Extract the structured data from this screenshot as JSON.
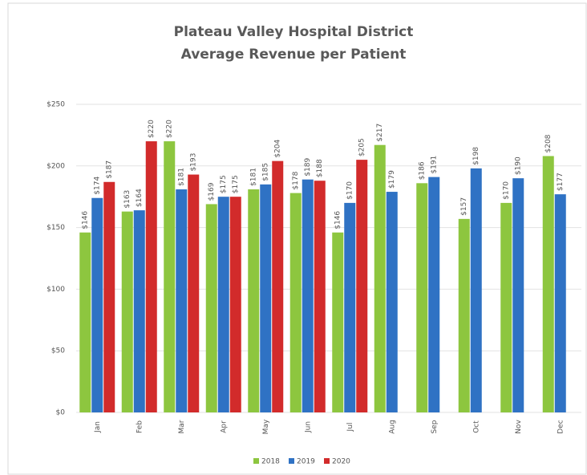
{
  "chart_data": {
    "type": "bar",
    "title": "Plateau Valley Hospital District",
    "subtitle": "Average Revenue per Patient",
    "categories": [
      "Jan",
      "Feb",
      "Mar",
      "Apr",
      "May",
      "Jun",
      "Jul",
      "Aug",
      "Sep",
      "Oct",
      "Nov",
      "Dec"
    ],
    "series": [
      {
        "name": "2018",
        "color": "#8dc63f",
        "values": [
          146,
          163,
          220,
          169,
          181,
          178,
          146,
          217,
          186,
          157,
          170,
          208
        ],
        "value_labels": [
          "$146",
          "$163",
          "$220",
          "$169",
          "$181",
          "$178",
          "$146",
          "$217",
          "$186",
          "$157",
          "$170",
          "$208"
        ]
      },
      {
        "name": "2019",
        "color": "#2f72c4",
        "values": [
          174,
          164,
          181,
          175,
          185,
          189,
          170,
          179,
          191,
          198,
          190,
          177
        ],
        "value_labels": [
          "$174",
          "$164",
          "$181",
          "$175",
          "$185",
          "$189",
          "$170",
          "$179",
          "$191",
          "$198",
          "$190",
          "$177"
        ]
      },
      {
        "name": "2020",
        "color": "#d22b2b",
        "values": [
          187,
          220,
          193,
          175,
          204,
          188,
          205,
          null,
          null,
          null,
          null,
          null
        ],
        "value_labels": [
          "$187",
          "$220",
          "$193",
          "$175",
          "$204",
          "$188",
          "$205",
          null,
          null,
          null,
          null,
          null
        ]
      }
    ],
    "ylim": [
      0,
      250
    ],
    "yticks": [
      {
        "value": 0,
        "label": "$0"
      },
      {
        "value": 50,
        "label": "$50"
      },
      {
        "value": 100,
        "label": "$100"
      },
      {
        "value": 150,
        "label": "$150"
      },
      {
        "value": 200,
        "label": "$200"
      },
      {
        "value": 250,
        "label": "$250"
      }
    ],
    "grid": true,
    "legend": "bottom"
  }
}
